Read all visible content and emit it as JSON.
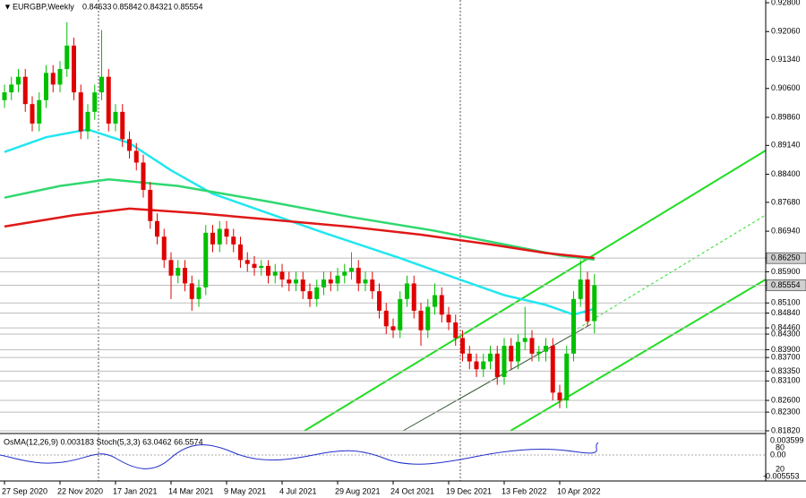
{
  "chart_data": {
    "type": "candlestick",
    "symbol": "EURGBP,Weekly",
    "ylim": [
      0.8182,
      0.928
    ],
    "yticks": [
      {
        "value": 0.928,
        "label": "0.92800"
      },
      {
        "value": 0.9206,
        "label": "0.92060"
      },
      {
        "value": 0.9134,
        "label": "0.91340"
      },
      {
        "value": 0.906,
        "label": "0.90600"
      },
      {
        "value": 0.8986,
        "label": "0.89860"
      },
      {
        "value": 0.8914,
        "label": "0.89140"
      },
      {
        "value": 0.884,
        "label": "0.88400"
      },
      {
        "value": 0.8768,
        "label": "0.87680"
      },
      {
        "value": 0.8694,
        "label": "0.86940"
      },
      {
        "value": 0.8625,
        "label": "0.86250"
      },
      {
        "value": 0.859,
        "label": "0.85900"
      },
      0.85554,
      {
        "value": 0.851,
        "label": "0.85100"
      },
      {
        "value": 0.8484,
        "label": "0.84840"
      },
      {
        "value": 0.8446,
        "label": "0.84460"
      },
      {
        "value": 0.843,
        "label": "0.84300"
      },
      {
        "value": 0.839,
        "label": "0.83900"
      },
      {
        "value": 0.837,
        "label": "0.83700"
      },
      {
        "value": 0.8335,
        "label": "0.83350"
      },
      {
        "value": 0.831,
        "label": "0.83100"
      },
      {
        "value": 0.826,
        "label": "0.82600"
      },
      {
        "value": 0.823,
        "label": "0.82300"
      },
      {
        "value": 0.8182,
        "label": "0.81820"
      }
    ],
    "xticks": [
      {
        "value": 0,
        "label": "27 Sep 2020"
      },
      {
        "value": 8,
        "label": "22 Nov 2020"
      },
      {
        "value": 16,
        "label": "17 Jan 2021"
      },
      {
        "value": 24,
        "label": "14 Mar 2021"
      },
      {
        "value": 32,
        "label": "9 May 2021"
      },
      {
        "value": 40,
        "label": "4 Jul 2021"
      },
      {
        "value": 48,
        "label": "29 Aug 2021"
      },
      {
        "value": 56,
        "label": "24 Oct 2021"
      },
      {
        "value": 64,
        "label": "19 Dec 2021"
      },
      {
        "value": 72,
        "label": "13 Feb 2022"
      },
      {
        "value": 80,
        "label": "10 Apr 2022"
      }
    ],
    "candles": [
      [
        0.903,
        0.907,
        0.901,
        0.905
      ],
      [
        0.905,
        0.909,
        0.903,
        0.907
      ],
      [
        0.907,
        0.911,
        0.905,
        0.909
      ],
      [
        0.909,
        0.911,
        0.9,
        0.902
      ],
      [
        0.902,
        0.904,
        0.895,
        0.897
      ],
      [
        0.897,
        0.905,
        0.895,
        0.903
      ],
      [
        0.903,
        0.912,
        0.901,
        0.91
      ],
      [
        0.91,
        0.912,
        0.905,
        0.907
      ],
      [
        0.907,
        0.913,
        0.905,
        0.911
      ],
      [
        0.911,
        0.923,
        0.909,
        0.917
      ],
      [
        0.917,
        0.919,
        0.903,
        0.905
      ],
      [
        0.905,
        0.907,
        0.893,
        0.895
      ],
      [
        0.895,
        0.902,
        0.893,
        0.9
      ],
      [
        0.9,
        0.907,
        0.898,
        0.905
      ],
      [
        0.905,
        0.921,
        0.903,
        0.909
      ],
      [
        0.909,
        0.911,
        0.895,
        0.897
      ],
      [
        0.897,
        0.902,
        0.895,
        0.9
      ],
      [
        0.9,
        0.902,
        0.891,
        0.893
      ],
      [
        0.893,
        0.895,
        0.888,
        0.89
      ],
      [
        0.89,
        0.892,
        0.885,
        0.887
      ],
      [
        0.887,
        0.889,
        0.878,
        0.88
      ],
      [
        0.88,
        0.882,
        0.87,
        0.872
      ],
      [
        0.872,
        0.874,
        0.866,
        0.868
      ],
      [
        0.868,
        0.87,
        0.86,
        0.862
      ],
      [
        0.862,
        0.864,
        0.852,
        0.858
      ],
      [
        0.858,
        0.862,
        0.856,
        0.86
      ],
      [
        0.86,
        0.862,
        0.854,
        0.856
      ],
      [
        0.856,
        0.858,
        0.849,
        0.852
      ],
      [
        0.852,
        0.857,
        0.85,
        0.855
      ],
      [
        0.855,
        0.871,
        0.853,
        0.869
      ],
      [
        0.869,
        0.871,
        0.864,
        0.866
      ],
      [
        0.866,
        0.872,
        0.864,
        0.87
      ],
      [
        0.87,
        0.872,
        0.866,
        0.868
      ],
      [
        0.868,
        0.87,
        0.864,
        0.866
      ],
      [
        0.866,
        0.868,
        0.86,
        0.862
      ],
      [
        0.862,
        0.864,
        0.859,
        0.861
      ],
      [
        0.861,
        0.863,
        0.858,
        0.86
      ],
      [
        0.86,
        0.862,
        0.858,
        0.8605
      ],
      [
        0.8605,
        0.862,
        0.856,
        0.858
      ],
      [
        0.858,
        0.861,
        0.856,
        0.859
      ],
      [
        0.859,
        0.861,
        0.855,
        0.857
      ],
      [
        0.857,
        0.859,
        0.854,
        0.856
      ],
      [
        0.856,
        0.859,
        0.854,
        0.857
      ],
      [
        0.857,
        0.859,
        0.852,
        0.854
      ],
      [
        0.854,
        0.856,
        0.85,
        0.852
      ],
      [
        0.852,
        0.857,
        0.85,
        0.855
      ],
      [
        0.855,
        0.859,
        0.853,
        0.857
      ],
      [
        0.857,
        0.859,
        0.854,
        0.856
      ],
      [
        0.856,
        0.86,
        0.854,
        0.858
      ],
      [
        0.858,
        0.861,
        0.856,
        0.859
      ],
      [
        0.859,
        0.864,
        0.857,
        0.86
      ],
      [
        0.86,
        0.862,
        0.854,
        0.856
      ],
      [
        0.856,
        0.859,
        0.854,
        0.857
      ],
      [
        0.857,
        0.859,
        0.852,
        0.854
      ],
      [
        0.854,
        0.856,
        0.847,
        0.849
      ],
      [
        0.849,
        0.851,
        0.843,
        0.845
      ],
      [
        0.845,
        0.847,
        0.842,
        0.844
      ],
      [
        0.844,
        0.854,
        0.842,
        0.852
      ],
      [
        0.852,
        0.858,
        0.85,
        0.856
      ],
      [
        0.856,
        0.858,
        0.847,
        0.849
      ],
      [
        0.849,
        0.851,
        0.84,
        0.844
      ],
      [
        0.844,
        0.852,
        0.842,
        0.85
      ],
      [
        0.85,
        0.856,
        0.848,
        0.853
      ],
      [
        0.853,
        0.855,
        0.846,
        0.848
      ],
      [
        0.848,
        0.85,
        0.844,
        0.846
      ],
      [
        0.846,
        0.848,
        0.84,
        0.842
      ],
      [
        0.842,
        0.844,
        0.836,
        0.838
      ],
      [
        0.838,
        0.84,
        0.834,
        0.836
      ],
      [
        0.836,
        0.838,
        0.832,
        0.834
      ],
      [
        0.834,
        0.838,
        0.832,
        0.836
      ],
      [
        0.836,
        0.84,
        0.834,
        0.838
      ],
      [
        0.838,
        0.84,
        0.83,
        0.832
      ],
      [
        0.832,
        0.842,
        0.83,
        0.84
      ],
      [
        0.84,
        0.842,
        0.834,
        0.836
      ],
      [
        0.836,
        0.843,
        0.834,
        0.841
      ],
      [
        0.841,
        0.85,
        0.839,
        0.842
      ],
      [
        0.842,
        0.844,
        0.836,
        0.838
      ],
      [
        0.838,
        0.84,
        0.836,
        0.8385
      ],
      [
        0.8385,
        0.842,
        0.836,
        0.84
      ],
      [
        0.84,
        0.842,
        0.826,
        0.828
      ],
      [
        0.828,
        0.83,
        0.824,
        0.826
      ],
      [
        0.826,
        0.84,
        0.824,
        0.838
      ],
      [
        0.838,
        0.854,
        0.836,
        0.852
      ],
      [
        0.852,
        0.862,
        0.85,
        0.857
      ],
      [
        0.857,
        0.859,
        0.845,
        0.8463
      ],
      [
        0.84633,
        0.85842,
        0.84321,
        0.85554
      ]
    ],
    "bull_color": "#00c000",
    "bear_color": "#e00000",
    "series": [
      {
        "color": "#22e6f0",
        "x": [
          0,
          6,
          12,
          18,
          24,
          30,
          38,
          46,
          57,
          64,
          72,
          78,
          82,
          85
        ],
        "values": [
          0.8897,
          0.8935,
          0.8955,
          0.892,
          0.885,
          0.879,
          0.874,
          0.869,
          0.8625,
          0.858,
          0.853,
          0.8505,
          0.848,
          0.8495
        ]
      },
      {
        "color": "#30d870",
        "x": [
          0,
          8,
          15,
          25,
          38,
          50,
          62,
          72,
          80,
          85
        ],
        "values": [
          0.878,
          0.881,
          0.8827,
          0.881,
          0.877,
          0.873,
          0.8695,
          0.866,
          0.8632,
          0.8621
        ]
      },
      {
        "color": "#e01818",
        "x": [
          0,
          10,
          18,
          28,
          38,
          50,
          60,
          70,
          78,
          85
        ],
        "values": [
          0.8706,
          0.8735,
          0.8752,
          0.874,
          0.8724,
          0.8705,
          0.8685,
          0.866,
          0.8638,
          0.8625
        ]
      }
    ]
  },
  "indicator_panel": {
    "label": "OsMA(12,26,9) 0.003183  Stoch(5,3,3) 63.0462 66.5574",
    "axis_labels": [
      "0.003599",
      "80",
      "0.00",
      "20",
      "-0.005553"
    ]
  }
}
